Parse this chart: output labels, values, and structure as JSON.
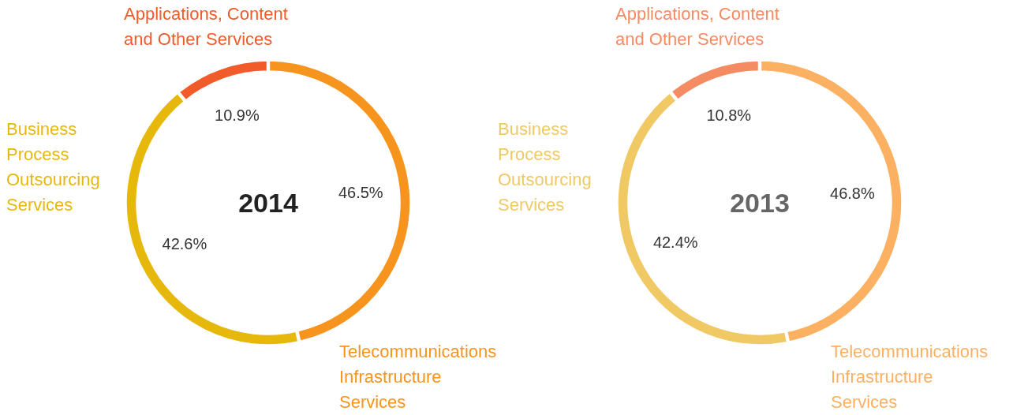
{
  "chart_data": [
    {
      "type": "donut",
      "title": "2014",
      "categories": [
        "Telecommunications Infrastructure Services",
        "Business Process Outsourcing Services",
        "Applications, Content and Other Services"
      ],
      "values": [
        46.5,
        42.6,
        10.9
      ],
      "colors": [
        "#f7941d",
        "#e6b80b",
        "#f15a29"
      ],
      "value_labels": [
        "46.5%",
        "42.6%",
        "10.9%"
      ]
    },
    {
      "type": "donut",
      "title": "2013",
      "categories": [
        "Telecommunications Infrastructure Services",
        "Business Process Outsourcing Services",
        "Applications, Content and Other Services"
      ],
      "values": [
        46.8,
        42.4,
        10.8
      ],
      "colors": [
        "#fbb062",
        "#f0c965",
        "#f58b62"
      ],
      "value_labels": [
        "46.8%",
        "42.4%",
        "10.8%"
      ]
    }
  ]
}
